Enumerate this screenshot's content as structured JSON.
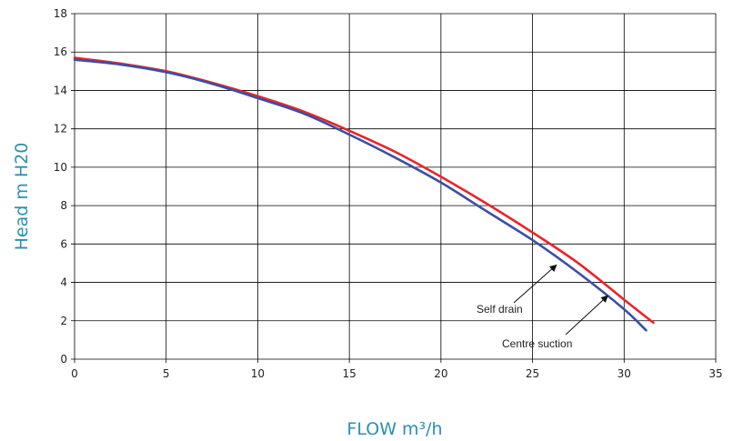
{
  "chart_data": {
    "type": "line",
    "title": "",
    "xlabel": "FLOW m³/h",
    "ylabel": "Head m H20",
    "xlim": [
      0,
      35
    ],
    "ylim": [
      0,
      18
    ],
    "xticks": [
      0,
      5,
      10,
      15,
      20,
      25,
      30,
      35
    ],
    "yticks": [
      0,
      2,
      4,
      6,
      8,
      10,
      12,
      14,
      16,
      18
    ],
    "grid": true,
    "colors": {
      "axis_title": "#2a8fb3",
      "grid": "#000000"
    },
    "series": [
      {
        "name": "Self drain",
        "color": "#e8242a",
        "x": [
          0,
          2.5,
          5,
          7.5,
          10,
          12.5,
          15,
          17.5,
          20,
          22.5,
          25,
          27.5,
          30,
          31.6
        ],
        "y": [
          15.7,
          15.4,
          15.0,
          14.4,
          13.7,
          12.9,
          11.9,
          10.8,
          9.5,
          8.1,
          6.6,
          5.0,
          3.1,
          1.9
        ]
      },
      {
        "name": "Centre suction",
        "color": "#3a4fa3",
        "x": [
          0,
          2.5,
          5,
          7.5,
          10,
          12.5,
          15,
          17.5,
          20,
          22.5,
          25,
          27.5,
          30,
          31.2
        ],
        "y": [
          15.6,
          15.35,
          14.95,
          14.35,
          13.6,
          12.8,
          11.7,
          10.5,
          9.2,
          7.7,
          6.2,
          4.5,
          2.6,
          1.5
        ]
      }
    ],
    "annotations": [
      {
        "text": "Self drain",
        "target": [
          26.3,
          4.9
        ]
      },
      {
        "text": "Centre suction",
        "target": [
          29.1,
          3.3
        ]
      }
    ]
  }
}
